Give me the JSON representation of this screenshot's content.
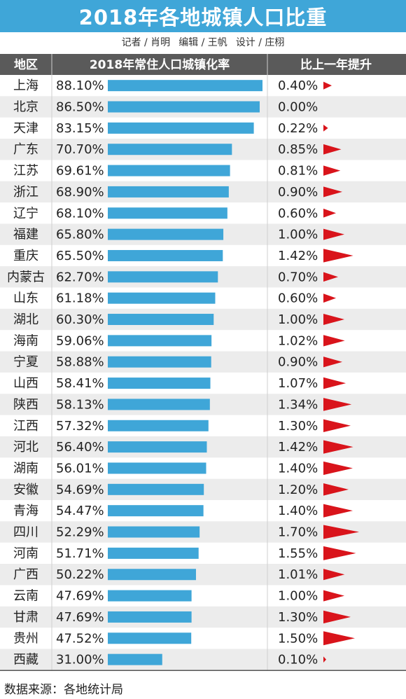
{
  "title": "2018年各地城镇人口比重",
  "credits": {
    "reporter": "记者 / 肖明",
    "editor": "编辑 / 王帆",
    "designer": "设计 / 庄栩"
  },
  "source": "数据来源：各地统计局",
  "colors": {
    "header_bg": "#3fa6d8",
    "table_header_bg": "#5a5a5a",
    "bar": "#3fa6d8",
    "triangle": "#d9141b",
    "row_alt": "#ececec"
  },
  "chart_data": {
    "type": "table",
    "columns": [
      "地区",
      "2018年常住人口城镇化率",
      "比上一年提升"
    ],
    "categories": [
      "上海",
      "北京",
      "天津",
      "广东",
      "江苏",
      "浙江",
      "辽宁",
      "福建",
      "重庆",
      "内蒙古",
      "山东",
      "湖北",
      "海南",
      "宁夏",
      "山西",
      "陕西",
      "江西",
      "河北",
      "湖南",
      "安徽",
      "青海",
      "四川",
      "河南",
      "广西",
      "云南",
      "甘肃",
      "贵州",
      "西藏"
    ],
    "rate": [
      88.1,
      86.5,
      83.15,
      70.7,
      69.61,
      68.9,
      68.1,
      65.8,
      65.5,
      62.7,
      61.18,
      60.3,
      59.06,
      58.88,
      58.41,
      58.13,
      57.32,
      56.4,
      56.01,
      54.69,
      54.47,
      52.29,
      51.71,
      50.22,
      47.69,
      47.69,
      47.52,
      31.0
    ],
    "rate_labels": [
      "88.10%",
      "86.50%",
      "83.15%",
      "70.70%",
      "69.61%",
      "68.90%",
      "68.10%",
      "65.80%",
      "65.50%",
      "62.70%",
      "61.18%",
      "60.30%",
      "59.06%",
      "58.88%",
      "58.41%",
      "58.13%",
      "57.32%",
      "56.40%",
      "56.01%",
      "54.69%",
      "54.47%",
      "52.29%",
      "51.71%",
      "50.22%",
      "47.69%",
      "47.69%",
      "47.52%",
      "31.00%"
    ],
    "increase": [
      0.4,
      0.0,
      0.22,
      0.85,
      0.81,
      0.9,
      0.6,
      1.0,
      1.42,
      0.7,
      0.6,
      1.0,
      1.02,
      0.9,
      1.07,
      1.34,
      1.3,
      1.42,
      1.4,
      1.2,
      1.4,
      1.7,
      1.55,
      1.01,
      1.0,
      1.3,
      1.5,
      0.1
    ],
    "increase_labels": [
      "0.40%",
      "0.00%",
      "0.22%",
      "0.85%",
      "0.81%",
      "0.90%",
      "0.60%",
      "1.00%",
      "1.42%",
      "0.70%",
      "0.60%",
      "1.00%",
      "1.02%",
      "0.90%",
      "1.07%",
      "1.34%",
      "1.30%",
      "1.42%",
      "1.40%",
      "1.20%",
      "1.40%",
      "1.70%",
      "1.55%",
      "1.01%",
      "1.00%",
      "1.30%",
      "1.50%",
      "0.10%"
    ]
  }
}
